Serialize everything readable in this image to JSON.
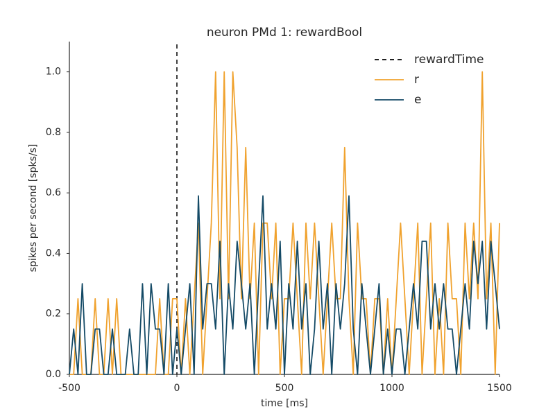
{
  "chart_data": {
    "type": "line",
    "title": "neuron PMd 1: rewardBool",
    "x_label": "time [ms]",
    "y_label": "spikes per second [spks/s]",
    "xlim": [
      -500,
      1500
    ],
    "ylim": [
      0,
      1.1
    ],
    "xticks": [
      -500,
      0,
      500,
      1000,
      1500
    ],
    "yticks": [
      {
        "value": 0,
        "label": "0.0"
      },
      {
        "value": 0.2,
        "label": "0.2"
      },
      {
        "value": 0.4,
        "label": "0.4"
      },
      {
        "value": 0.6,
        "label": "0.6"
      },
      {
        "value": 0.8,
        "label": "0.8"
      },
      {
        "value": 1.0,
        "label": "1.0"
      }
    ],
    "grid": false,
    "legend": "upper right",
    "vlines": [
      {
        "name": "rewardTime",
        "x": 0,
        "color": "#000000",
        "dashed": true
      }
    ],
    "x": [
      -500,
      -480,
      -460,
      -440,
      -420,
      -400,
      -380,
      -360,
      -340,
      -320,
      -300,
      -280,
      -260,
      -240,
      -220,
      -200,
      -180,
      -160,
      -140,
      -120,
      -100,
      -80,
      -60,
      -40,
      -20,
      0,
      20,
      40,
      60,
      80,
      100,
      120,
      140,
      160,
      180,
      200,
      220,
      240,
      260,
      280,
      300,
      320,
      340,
      360,
      380,
      400,
      420,
      440,
      460,
      480,
      500,
      520,
      540,
      560,
      580,
      600,
      620,
      640,
      660,
      680,
      700,
      720,
      740,
      760,
      780,
      800,
      820,
      840,
      860,
      880,
      900,
      920,
      940,
      960,
      980,
      1000,
      1020,
      1040,
      1060,
      1080,
      1100,
      1120,
      1140,
      1160,
      1180,
      1200,
      1220,
      1240,
      1260,
      1280,
      1300,
      1320,
      1340,
      1360,
      1380,
      1400,
      1420,
      1440,
      1460,
      1480,
      1500
    ],
    "series": [
      {
        "name": "r",
        "color": "#f0a22e",
        "values": [
          0,
          0,
          0.25,
          0,
          0,
          0,
          0.25,
          0,
          0,
          0.25,
          0,
          0.25,
          0,
          0,
          0,
          0,
          0,
          0,
          0,
          0,
          0,
          0.25,
          0,
          0,
          0.25,
          0.25,
          0,
          0.25,
          0,
          0.25,
          0.5,
          0,
          0.25,
          0.5,
          1.0,
          0.25,
          1.0,
          0.25,
          1.0,
          0.75,
          0.25,
          0.75,
          0.25,
          0.5,
          0,
          0.5,
          0.5,
          0.25,
          0.5,
          0,
          0.25,
          0.25,
          0.5,
          0.25,
          0,
          0.5,
          0.25,
          0.5,
          0.25,
          0,
          0.25,
          0.5,
          0.25,
          0.25,
          0.75,
          0.25,
          0,
          0.5,
          0.25,
          0.25,
          0,
          0.25,
          0.25,
          0,
          0.25,
          0,
          0.25,
          0.5,
          0.25,
          0,
          0.25,
          0.5,
          0,
          0.25,
          0.5,
          0,
          0.25,
          0,
          0.5,
          0.25,
          0.25,
          0,
          0.5,
          0.25,
          0.5,
          0.25,
          1.0,
          0.25,
          0.5,
          0,
          0.5
        ]
      },
      {
        "name": "e",
        "color": "#144a66",
        "values": [
          0,
          0.15,
          0,
          0.3,
          0,
          0,
          0.15,
          0.15,
          0,
          0,
          0.15,
          0,
          0,
          0,
          0.15,
          0,
          0,
          0.3,
          0,
          0.3,
          0.15,
          0.15,
          0,
          0.3,
          0,
          0.15,
          0,
          0.15,
          0.3,
          0,
          0.59,
          0.15,
          0.3,
          0.3,
          0.15,
          0.44,
          0,
          0.3,
          0.15,
          0.44,
          0.3,
          0.15,
          0.3,
          0,
          0.3,
          0.59,
          0.15,
          0.3,
          0.15,
          0.44,
          0,
          0.3,
          0.15,
          0.44,
          0.15,
          0.3,
          0,
          0.15,
          0.44,
          0.15,
          0.3,
          0,
          0.3,
          0.15,
          0.3,
          0.59,
          0.15,
          0,
          0.3,
          0.15,
          0,
          0.15,
          0.3,
          0,
          0.15,
          0,
          0.15,
          0.15,
          0,
          0.15,
          0.3,
          0.15,
          0.44,
          0.44,
          0.15,
          0.3,
          0.15,
          0.3,
          0.15,
          0.15,
          0,
          0.15,
          0.3,
          0.15,
          0.44,
          0.3,
          0.44,
          0.15,
          0.44,
          0.3,
          0.15
        ]
      }
    ]
  }
}
